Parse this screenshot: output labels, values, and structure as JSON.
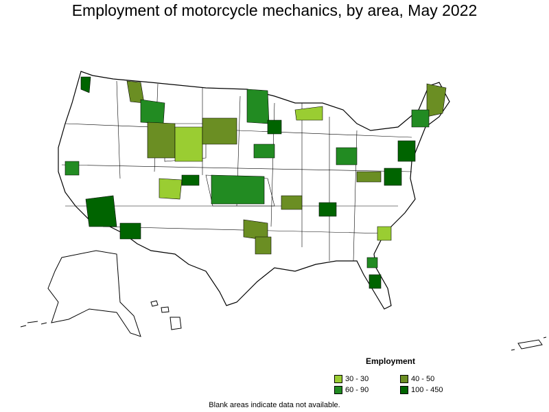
{
  "title": "Employment of motorcycle mechanics, by area, May 2022",
  "legend": {
    "title": "Employment",
    "items": [
      {
        "label": "30 - 30",
        "color": "#9acd32"
      },
      {
        "label": "40 - 50",
        "color": "#6b8e23"
      },
      {
        "label": "60 - 90",
        "color": "#228b22"
      },
      {
        "label": "100 - 450",
        "color": "#006400"
      }
    ]
  },
  "footnote": "Blank areas indicate data not available.",
  "colors": {
    "no_data": "#ffffff",
    "border": "#000000"
  }
}
